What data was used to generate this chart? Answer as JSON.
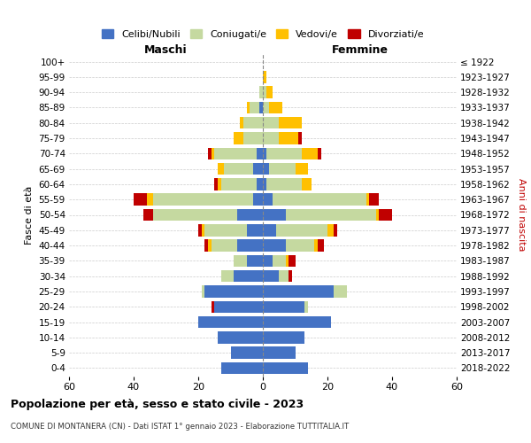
{
  "age_groups": [
    "0-4",
    "5-9",
    "10-14",
    "15-19",
    "20-24",
    "25-29",
    "30-34",
    "35-39",
    "40-44",
    "45-49",
    "50-54",
    "55-59",
    "60-64",
    "65-69",
    "70-74",
    "75-79",
    "80-84",
    "85-89",
    "90-94",
    "95-99",
    "100+"
  ],
  "birth_years": [
    "2018-2022",
    "2013-2017",
    "2008-2012",
    "2003-2007",
    "1998-2002",
    "1993-1997",
    "1988-1992",
    "1983-1987",
    "1978-1982",
    "1973-1977",
    "1968-1972",
    "1963-1967",
    "1958-1962",
    "1953-1957",
    "1948-1952",
    "1943-1947",
    "1938-1942",
    "1933-1937",
    "1928-1932",
    "1923-1927",
    "≤ 1922"
  ],
  "males": {
    "celibi": [
      13,
      10,
      14,
      20,
      15,
      18,
      9,
      5,
      8,
      5,
      8,
      3,
      2,
      3,
      2,
      0,
      0,
      1,
      0,
      0,
      0
    ],
    "coniugati": [
      0,
      0,
      0,
      0,
      0,
      1,
      4,
      4,
      8,
      13,
      26,
      31,
      11,
      9,
      13,
      6,
      6,
      3,
      1,
      0,
      0
    ],
    "vedovi": [
      0,
      0,
      0,
      0,
      0,
      0,
      0,
      0,
      1,
      1,
      0,
      2,
      1,
      2,
      1,
      3,
      1,
      1,
      0,
      0,
      0
    ],
    "divorziati": [
      0,
      0,
      0,
      0,
      1,
      0,
      0,
      0,
      1,
      1,
      3,
      4,
      1,
      0,
      1,
      0,
      0,
      0,
      0,
      0,
      0
    ]
  },
  "females": {
    "celibi": [
      14,
      10,
      13,
      21,
      13,
      22,
      5,
      3,
      7,
      4,
      7,
      3,
      1,
      2,
      1,
      0,
      0,
      0,
      0,
      0,
      0
    ],
    "coniugati": [
      0,
      0,
      0,
      0,
      1,
      4,
      3,
      4,
      9,
      16,
      28,
      29,
      11,
      8,
      11,
      5,
      5,
      2,
      1,
      0,
      0
    ],
    "vedovi": [
      0,
      0,
      0,
      0,
      0,
      0,
      0,
      1,
      1,
      2,
      1,
      1,
      3,
      4,
      5,
      6,
      7,
      4,
      2,
      1,
      0
    ],
    "divorziati": [
      0,
      0,
      0,
      0,
      0,
      0,
      1,
      2,
      2,
      1,
      4,
      3,
      0,
      0,
      1,
      1,
      0,
      0,
      0,
      0,
      0
    ]
  },
  "colors": {
    "celibi": "#4472c4",
    "coniugati": "#c5d9a0",
    "vedovi": "#ffc000",
    "divorziati": "#c00000"
  },
  "xlim": 60,
  "title": "Popolazione per età, sesso e stato civile - 2023",
  "subtitle": "COMUNE DI MONTANERA (CN) - Dati ISTAT 1° gennaio 2023 - Elaborazione TUTTITALIA.IT",
  "xlabel_left": "Maschi",
  "xlabel_right": "Femmine",
  "ylabel_left": "Fasce di età",
  "ylabel_right": "Anni di nascita",
  "legend_labels": [
    "Celibi/Nubili",
    "Coniugati/e",
    "Vedovi/e",
    "Divorziati/e"
  ],
  "bg_color": "#ffffff",
  "grid_color": "#cccccc"
}
